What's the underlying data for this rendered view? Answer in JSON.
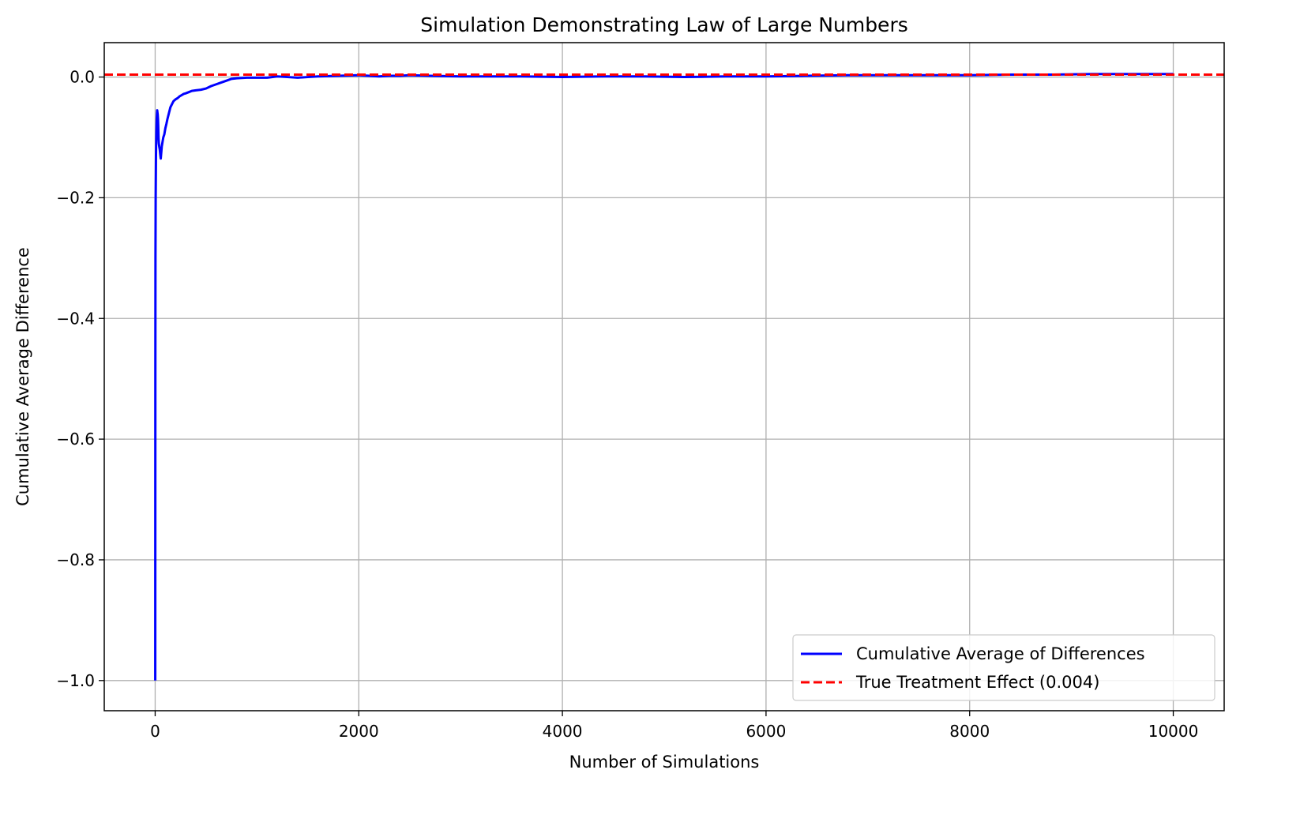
{
  "chart_data": {
    "type": "line",
    "title": "Simulation Demonstrating Law of Large Numbers",
    "xlabel": "Number of Simulations",
    "ylabel": "Cumulative Average Difference",
    "xlim": [
      -500,
      10500
    ],
    "ylim": [
      -1.05,
      0.057
    ],
    "x_ticks": [
      0,
      2000,
      4000,
      6000,
      8000,
      10000
    ],
    "x_tick_labels": [
      "0",
      "2000",
      "4000",
      "6000",
      "8000",
      "10000"
    ],
    "y_ticks": [
      0.0,
      -0.2,
      -0.4,
      -0.6,
      -0.8,
      -1.0
    ],
    "y_tick_labels": [
      "0.0",
      "−0.2",
      "−0.4",
      "−0.6",
      "−0.8",
      "−1.0"
    ],
    "grid": true,
    "legend_position": "lower-right",
    "series": [
      {
        "name": "Cumulative Average of Differences",
        "color": "#0000ff",
        "style": "solid",
        "x": [
          1,
          2,
          3,
          5,
          8,
          12,
          15,
          18,
          20,
          22,
          25,
          28,
          30,
          33,
          36,
          40,
          45,
          50,
          55,
          60,
          65,
          70,
          75,
          80,
          90,
          100,
          110,
          120,
          135,
          150,
          165,
          180,
          200,
          220,
          240,
          260,
          280,
          300,
          330,
          360,
          400,
          450,
          500,
          550,
          600,
          650,
          700,
          750,
          800,
          900,
          1000,
          1100,
          1200,
          1300,
          1400,
          1500,
          1600,
          1800,
          2000,
          2100,
          2200,
          2300,
          2400,
          2500,
          2700,
          3000,
          3300,
          3600,
          4000,
          4400,
          4800,
          5200,
          5600,
          6000,
          6400,
          6800,
          7200,
          7600,
          8000,
          8400,
          8800,
          9200,
          9600,
          10000
        ],
        "y": [
          -1.0,
          -0.5,
          -0.3,
          -0.2,
          -0.13,
          -0.09,
          -0.07,
          -0.06,
          -0.055,
          -0.058,
          -0.062,
          -0.07,
          -0.08,
          -0.1,
          -0.11,
          -0.115,
          -0.12,
          -0.128,
          -0.135,
          -0.125,
          -0.115,
          -0.11,
          -0.105,
          -0.1,
          -0.095,
          -0.085,
          -0.078,
          -0.07,
          -0.06,
          -0.05,
          -0.045,
          -0.04,
          -0.037,
          -0.035,
          -0.032,
          -0.03,
          -0.028,
          -0.027,
          -0.025,
          -0.023,
          -0.022,
          -0.021,
          -0.019,
          -0.015,
          -0.012,
          -0.009,
          -0.006,
          -0.003,
          -0.002,
          -0.001,
          -0.001,
          -0.001,
          0.001,
          0.0,
          -0.001,
          0.0,
          0.001,
          0.002,
          0.003,
          0.002,
          0.001,
          0.002,
          0.002,
          0.003,
          0.002,
          0.001,
          0.001,
          0.001,
          0.0,
          0.001,
          0.001,
          0.0,
          0.001,
          0.001,
          0.002,
          0.003,
          0.003,
          0.003,
          0.003,
          0.004,
          0.004,
          0.005,
          0.005,
          0.005
        ]
      },
      {
        "name": "True Treatment Effect (0.004)",
        "color": "#ff0000",
        "style": "dashed",
        "type": "hline",
        "value": 0.004
      }
    ]
  }
}
